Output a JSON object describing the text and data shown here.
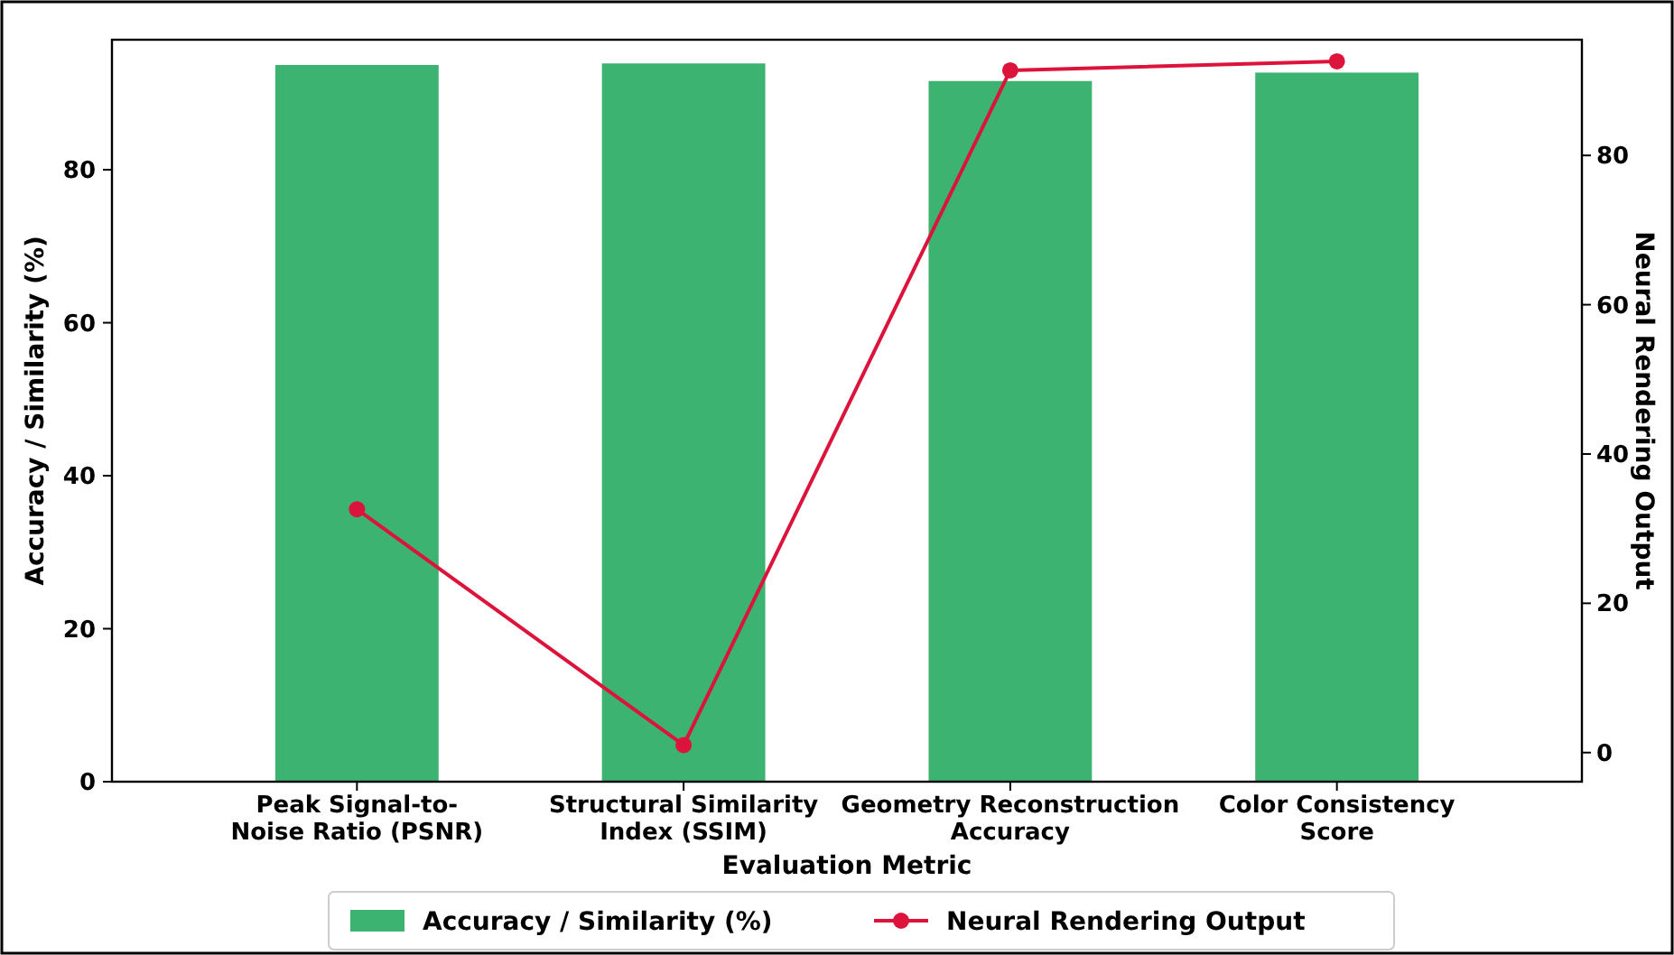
{
  "chart_data": {
    "type": "bar",
    "xlabel": "Evaluation Metric",
    "ylabel": "Accuracy / Similarity (%)",
    "y2label": "Neural Rendering Output",
    "categories": [
      "Peak Signal-to-\nNoise Ratio (PSNR)",
      "Structural Similarity\nIndex (SSIM)",
      "Geometry Reconstruction\nAccuracy",
      "Color Consistency\nScore"
    ],
    "series": [
      {
        "name": "Accuracy / Similarity (%)",
        "color": "#3cb371",
        "values": [
          93.7,
          93.9,
          91.6,
          92.7
        ]
      },
      {
        "name": "Neural Rendering Output",
        "type": "line",
        "axis": "y2",
        "color": "#dc143c",
        "values": [
          32.6,
          1.0,
          91.4,
          92.6
        ]
      }
    ],
    "ylim": [
      0,
      97
    ],
    "yticks": [
      0,
      20,
      40,
      60,
      80
    ],
    "y2lim": [
      -3.9,
      95.5
    ],
    "y2ticks": [
      0,
      20,
      40,
      60,
      80
    ],
    "marker": "circle",
    "legend": "bottom",
    "grid": false
  }
}
